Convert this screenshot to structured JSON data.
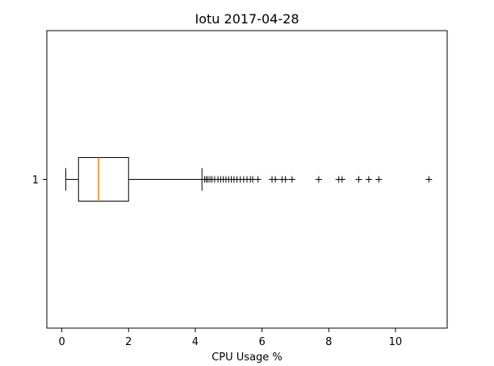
{
  "chart_data": {
    "type": "boxplot",
    "orientation": "horizontal",
    "title": "Iotu 2017-04-28",
    "xlabel": "CPU Usage %",
    "ylabel": "",
    "xlim": [
      -0.45,
      11.55
    ],
    "xticks": [
      0,
      2,
      4,
      6,
      8,
      10
    ],
    "ytick_labels": [
      "1"
    ],
    "grid": false,
    "colors": {
      "box": "#000000",
      "median": "#ff7f0e",
      "flier": "#000000"
    },
    "boxes": [
      {
        "label": "1",
        "whisker_low": 0.12,
        "q1": 0.5,
        "median": 1.1,
        "q3": 2.0,
        "whisker_high": 4.2,
        "fliers": [
          4.28,
          4.33,
          4.38,
          4.44,
          4.5,
          4.58,
          4.68,
          4.76,
          4.84,
          4.92,
          5.0,
          5.08,
          5.16,
          5.25,
          5.35,
          5.45,
          5.55,
          5.65,
          5.72,
          5.88,
          6.3,
          6.4,
          6.6,
          6.7,
          6.9,
          7.7,
          8.3,
          8.4,
          8.9,
          9.2,
          9.5,
          11.0
        ]
      }
    ]
  }
}
